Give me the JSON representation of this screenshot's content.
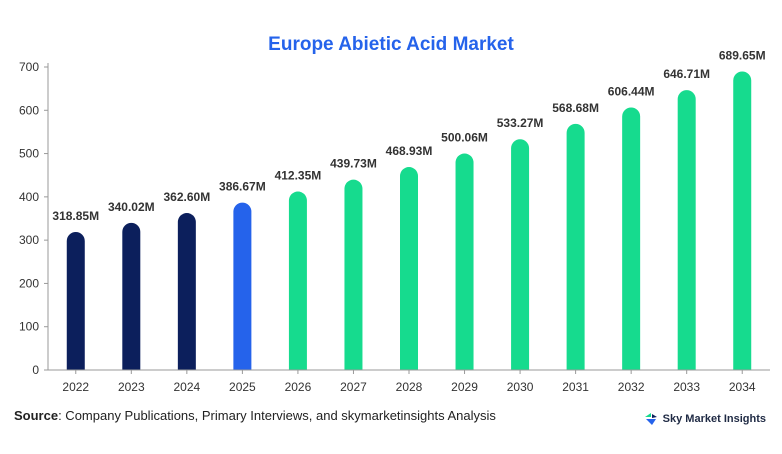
{
  "chart_data": {
    "type": "bar",
    "title": "Europe Abietic Acid Market",
    "categories": [
      "2022",
      "2023",
      "2024",
      "2025",
      "2026",
      "2027",
      "2028",
      "2029",
      "2030",
      "2031",
      "2032",
      "2033",
      "2034"
    ],
    "values": [
      318.85,
      340.02,
      362.6,
      386.67,
      412.35,
      439.73,
      468.93,
      500.06,
      533.27,
      568.68,
      606.44,
      646.71,
      689.65
    ],
    "data_labels": [
      "318.85M",
      "340.02M",
      "362.60M",
      "386.67M",
      "412.35M",
      "439.73M",
      "468.93M",
      "500.06M",
      "533.27M",
      "568.68M",
      "606.44M",
      "646.71M",
      "689.65M"
    ],
    "ylim": [
      0,
      700
    ],
    "yticks": [
      0,
      100,
      200,
      300,
      400,
      500,
      600,
      700
    ],
    "grid": false,
    "xlabel": "",
    "ylabel": "",
    "colors": {
      "historical": "#0c1f5c",
      "current": "#2563eb",
      "forecast": "#16db8e"
    },
    "bar_color_groups": [
      "historical",
      "historical",
      "historical",
      "current",
      "forecast",
      "forecast",
      "forecast",
      "forecast",
      "forecast",
      "forecast",
      "forecast",
      "forecast",
      "forecast"
    ]
  },
  "footer": {
    "source_label": "Source",
    "source_text": ": Company Publications, Primary Interviews, and skymarketinsights Analysis",
    "brand_name": "Sky Market Insights",
    "brand_icon": "sky-market-insights-logo-icon"
  }
}
